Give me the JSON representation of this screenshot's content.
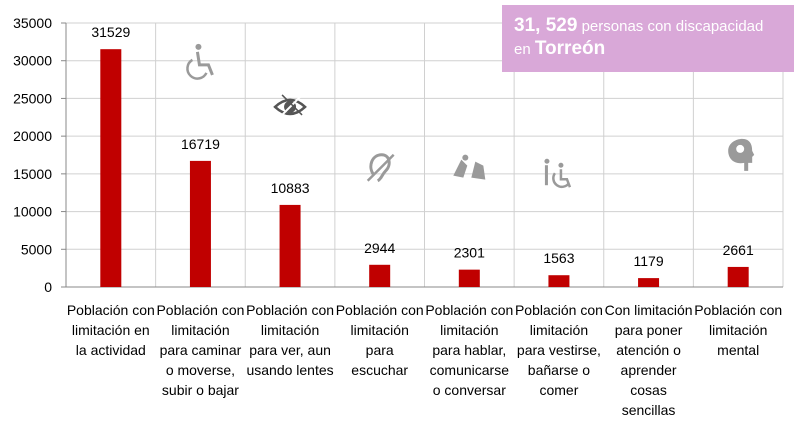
{
  "chart_data": {
    "type": "bar",
    "categories": [
      "Población con limitación en la actividad",
      "Población con limitación para caminar o moverse, subir o bajar",
      "Población con limitación para ver, aun usando lentes",
      "Población con limitación para escuchar",
      "Población con limitación para hablar, comunicarse o conversar",
      "Población con limitación para vestirse, bañarse o comer",
      "Con limitación para poner atención o aprender cosas sencillas",
      "Población con limitación mental"
    ],
    "values": [
      31529,
      16719,
      10883,
      2944,
      2301,
      1563,
      1179,
      2661
    ],
    "value_labels": [
      "31529",
      "16719",
      "10883",
      "2944",
      "2301",
      "1563",
      "1179",
      "2661"
    ],
    "y_ticks": [
      "0",
      "5000",
      "10000",
      "15000",
      "20000",
      "25000",
      "30000",
      "35000"
    ],
    "ylim": [
      0,
      35000
    ],
    "grid": true,
    "bar_color": "#c00000",
    "icons": [
      "",
      "wheelchair-icon",
      "eye-icon",
      "hearing-icon",
      "sign-language-icon",
      "assisted-mobility-icon",
      "",
      "head-mind-icon"
    ]
  },
  "callout": {
    "number": "31, 529",
    "text": " personas con discapacidad",
    "prefix": "en ",
    "city": "Torreón",
    "bg_color": "#d9a8d8"
  }
}
